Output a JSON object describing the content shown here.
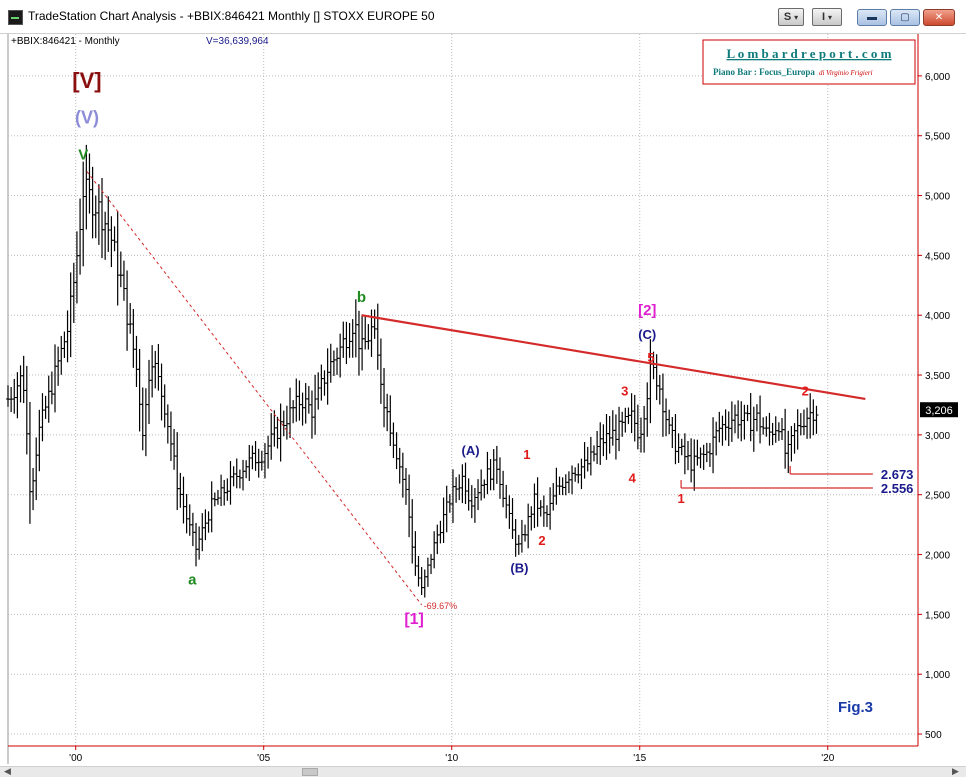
{
  "window": {
    "title": "TradeStation Chart Analysis - +BBIX:846421 Monthly [] STOXX EUROPE 50",
    "btn_s": "S",
    "btn_i": "I",
    "minimize_glyph": "▬",
    "restore_glyph": "▢",
    "close_glyph": "✕"
  },
  "chart": {
    "symbol_label": "+BBIX:846421 - Monthly",
    "volume_label": "V=36,639,964",
    "brand_name": "L o m b a r d r e p o r t . c o m",
    "brand_sub_bold": "Piano Bar : Focus_Europa",
    "brand_sub_italic": "di Virginio Frigieri",
    "fig_label": "Fig.3",
    "current_value_label": "3,206"
  },
  "chart_data": {
    "type": "bar",
    "title": "",
    "xlabel": "",
    "ylabel": "",
    "x_ticks": [
      "'00",
      "'05",
      "'10",
      "'15",
      "'20"
    ],
    "x_tick_years": [
      2000,
      2005,
      2010,
      2015,
      2020
    ],
    "xlim": [
      1998.2,
      2022.4
    ],
    "ylim": [
      400,
      6350
    ],
    "y_ticks": [
      500,
      1000,
      1500,
      2000,
      2500,
      3000,
      3500,
      4000,
      4500,
      5000,
      5500,
      6000
    ],
    "y_tick_labels": [
      "500",
      "1,000",
      "1,500",
      "2,000",
      "2,500",
      "3,000",
      "3,500",
      "4,000",
      "4,500",
      "5,000",
      "5,500",
      "6,000"
    ],
    "grid": true,
    "current_value": 3206,
    "colors": {
      "bars": "#000000",
      "axis": "#cc0000",
      "grid": "#bbbbbb",
      "trendline": "#d42a2a",
      "wave_red": "#e01b1b",
      "wave_green": "#1f8a1f",
      "wave_navy": "#1a1a8c",
      "wave_magenta": "#e020d0",
      "wave_darkred": "#8a1010",
      "wave_lavender": "#8c8cd8"
    },
    "price_series": [
      [
        1998.2,
        3300
      ],
      [
        1998.6,
        3500
      ],
      [
        1998.8,
        2500
      ],
      [
        1999.0,
        3000
      ],
      [
        1999.4,
        3450
      ],
      [
        1999.8,
        3900
      ],
      [
        2000.0,
        4400
      ],
      [
        2000.2,
        5050
      ],
      [
        2000.6,
        4900
      ],
      [
        2000.9,
        4700
      ],
      [
        2001.2,
        4300
      ],
      [
        2001.6,
        3600
      ],
      [
        2001.8,
        3000
      ],
      [
        2002.0,
        3700
      ],
      [
        2002.4,
        3200
      ],
      [
        2002.7,
        2600
      ],
      [
        2003.0,
        2250
      ],
      [
        2003.2,
        2050
      ],
      [
        2003.6,
        2400
      ],
      [
        2004.0,
        2550
      ],
      [
        2004.5,
        2750
      ],
      [
        2005.0,
        2850
      ],
      [
        2005.5,
        3100
      ],
      [
        2006.0,
        3300
      ],
      [
        2006.3,
        3200
      ],
      [
        2006.7,
        3550
      ],
      [
        2007.0,
        3700
      ],
      [
        2007.4,
        3950
      ],
      [
        2007.6,
        3700
      ],
      [
        2007.9,
        3900
      ],
      [
        2008.2,
        3300
      ],
      [
        2008.5,
        2900
      ],
      [
        2008.8,
        2500
      ],
      [
        2009.0,
        1950
      ],
      [
        2009.2,
        1700
      ],
      [
        2009.6,
        2150
      ],
      [
        2010.0,
        2500
      ],
      [
        2010.3,
        2650
      ],
      [
        2010.5,
        2450
      ],
      [
        2010.9,
        2650
      ],
      [
        2011.2,
        2750
      ],
      [
        2011.6,
        2200
      ],
      [
        2011.8,
        2050
      ],
      [
        2012.2,
        2450
      ],
      [
        2012.5,
        2300
      ],
      [
        2012.8,
        2550
      ],
      [
        2013.2,
        2700
      ],
      [
        2013.6,
        2750
      ],
      [
        2014.0,
        2950
      ],
      [
        2014.5,
        3050
      ],
      [
        2014.8,
        3150
      ],
      [
        2015.0,
        3000
      ],
      [
        2015.3,
        3550
      ],
      [
        2015.5,
        3450
      ],
      [
        2015.8,
        3000
      ],
      [
        2016.1,
        2850
      ],
      [
        2016.4,
        2750
      ],
      [
        2016.8,
        2850
      ],
      [
        2017.1,
        3050
      ],
      [
        2017.5,
        3150
      ],
      [
        2017.9,
        3100
      ],
      [
        2018.1,
        3150
      ],
      [
        2018.4,
        3000
      ],
      [
        2018.7,
        3100
      ],
      [
        2018.9,
        2800
      ],
      [
        2019.1,
        3000
      ],
      [
        2019.4,
        3150
      ],
      [
        2019.6,
        3200
      ],
      [
        2019.7,
        3206
      ]
    ],
    "trendline": {
      "from": [
        2007.6,
        4000
      ],
      "to": [
        2021.0,
        3300
      ]
    },
    "decline_line": {
      "from": [
        2000.3,
        5200
      ],
      "to": [
        2009.2,
        1580
      ],
      "label": "-69.67%"
    },
    "support_levels": [
      {
        "value": 2673,
        "from_year": 2019.0,
        "to_year": 2021.2,
        "label": "2.673"
      },
      {
        "value": 2556,
        "from_year": 2016.1,
        "to_year": 2021.2,
        "label": "2.556"
      }
    ],
    "wave_labels": [
      {
        "text": "[V]",
        "x": 2000.3,
        "y": 5900,
        "color": "#8a1010",
        "size": 22
      },
      {
        "text": "(V)",
        "x": 2000.3,
        "y": 5600,
        "color": "#8c8cd8",
        "size": 18
      },
      {
        "text": "V",
        "x": 2000.2,
        "y": 5300,
        "color": "#1f8a1f",
        "size": 15
      },
      {
        "text": "a",
        "x": 2003.1,
        "y": 1750,
        "color": "#1f8a1f",
        "size": 15
      },
      {
        "text": "b",
        "x": 2007.6,
        "y": 4110,
        "color": "#1f8a1f",
        "size": 15
      },
      {
        "text": "[1]",
        "x": 2009.0,
        "y": 1420,
        "color": "#e020d0",
        "size": 16
      },
      {
        "text": "(A)",
        "x": 2010.5,
        "y": 2830,
        "color": "#1a1a8c",
        "size": 13
      },
      {
        "text": "(B)",
        "x": 2011.8,
        "y": 1850,
        "color": "#1a1a8c",
        "size": 13
      },
      {
        "text": "1",
        "x": 2012.0,
        "y": 2800,
        "color": "#e01b1b",
        "size": 13
      },
      {
        "text": "2",
        "x": 2012.4,
        "y": 2080,
        "color": "#e01b1b",
        "size": 13
      },
      {
        "text": "3",
        "x": 2014.6,
        "y": 3330,
        "color": "#e01b1b",
        "size": 13
      },
      {
        "text": "4",
        "x": 2014.8,
        "y": 2600,
        "color": "#e01b1b",
        "size": 13
      },
      {
        "text": "[2]",
        "x": 2015.2,
        "y": 4000,
        "color": "#e020d0",
        "size": 15
      },
      {
        "text": "(C)",
        "x": 2015.2,
        "y": 3800,
        "color": "#1a1a8c",
        "size": 13
      },
      {
        "text": "5",
        "x": 2015.3,
        "y": 3610,
        "color": "#e01b1b",
        "size": 13
      },
      {
        "text": "1",
        "x": 2016.1,
        "y": 2430,
        "color": "#e01b1b",
        "size": 13
      },
      {
        "text": "2",
        "x": 2019.4,
        "y": 3330,
        "color": "#e01b1b",
        "size": 13
      }
    ]
  }
}
